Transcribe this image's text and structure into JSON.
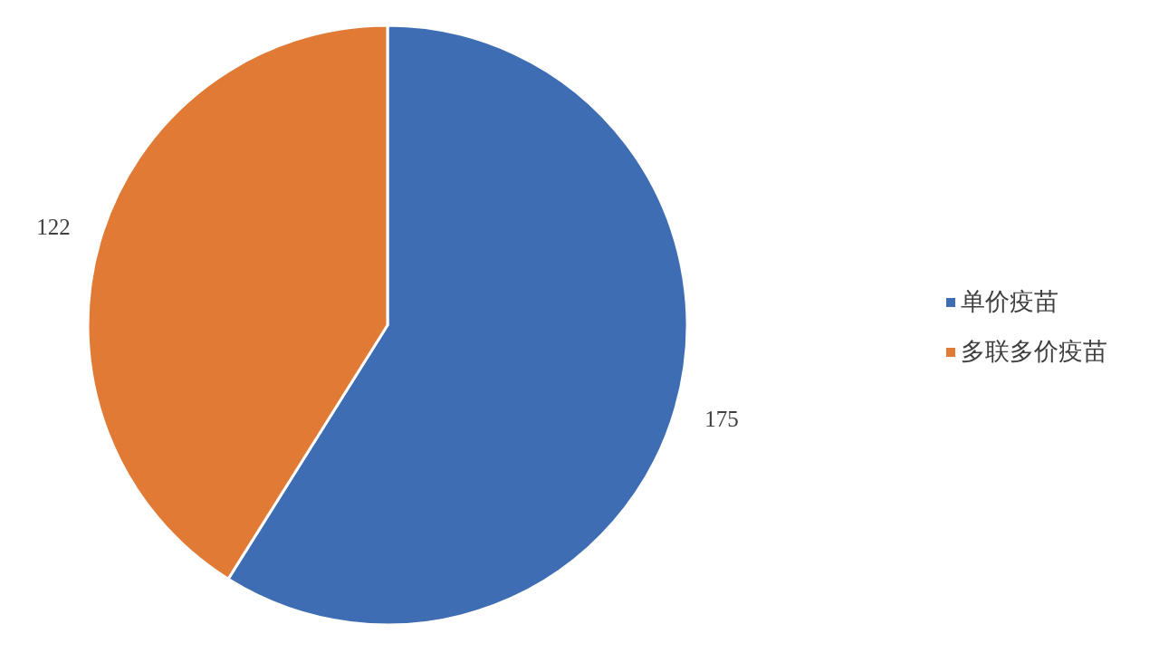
{
  "chart_data": {
    "type": "pie",
    "categories": [
      "单价疫苗",
      "多联多价疫苗"
    ],
    "values": [
      175,
      122
    ],
    "colors": [
      "#3f6db3",
      "#e07a35"
    ],
    "data_labels": true,
    "legend": "right"
  }
}
